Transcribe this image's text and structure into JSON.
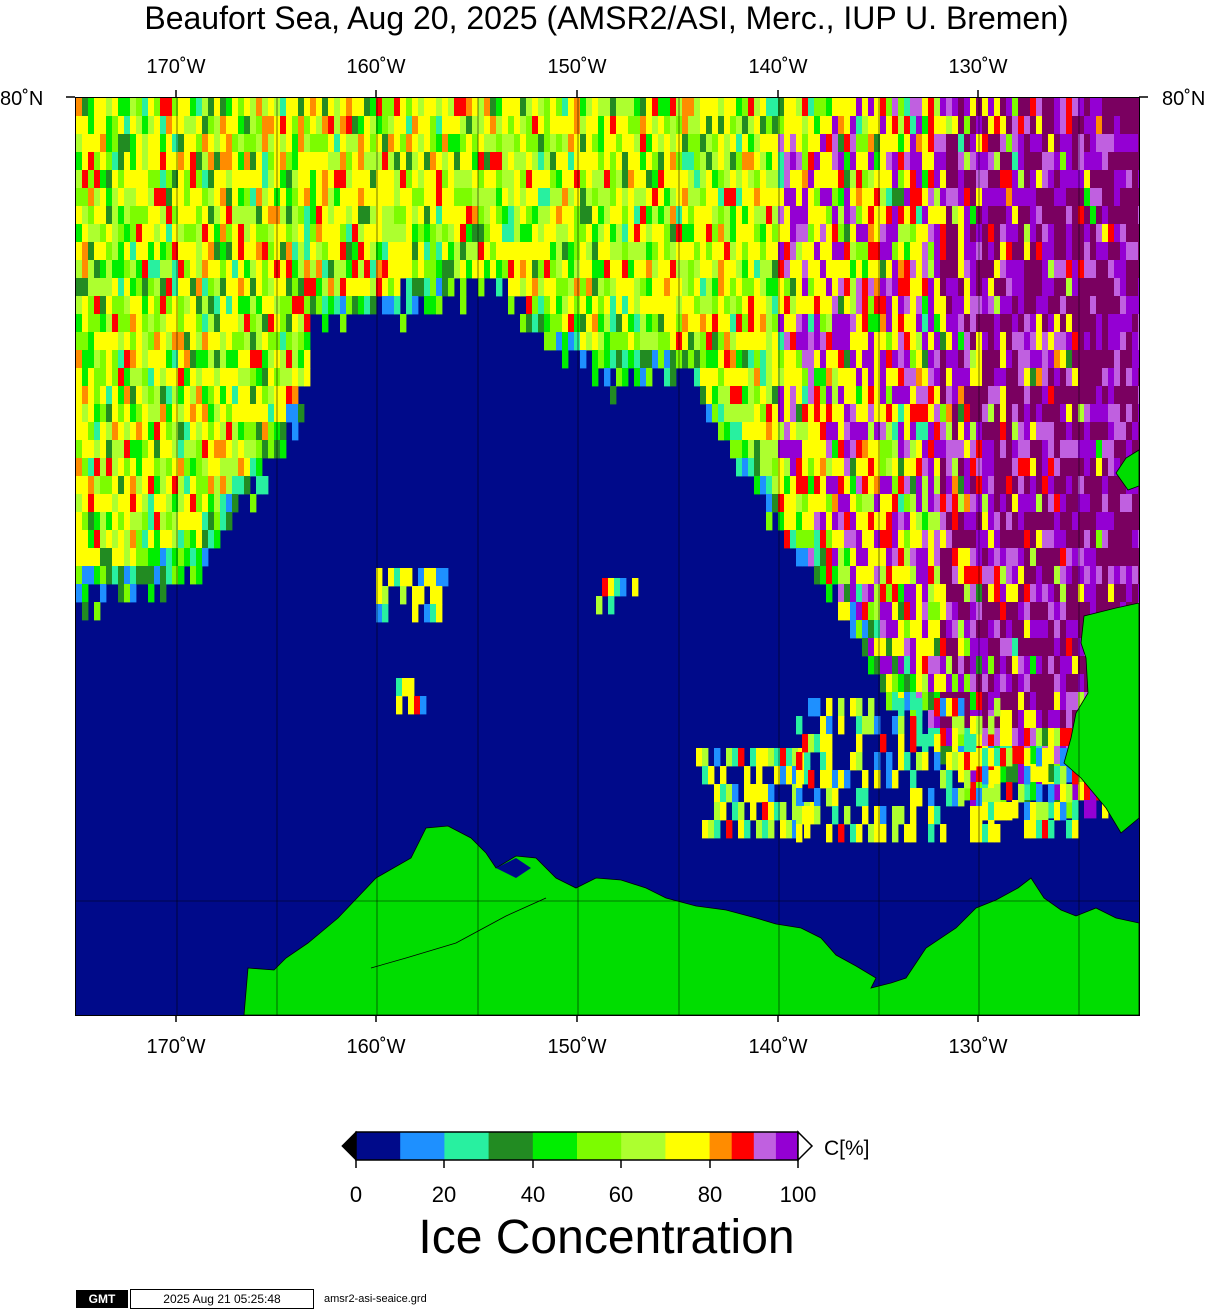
{
  "title": "Beaufort Sea, Aug 20, 2025 (AMSR2/ASI, Merc., IUP U. Bremen)",
  "map": {
    "lon_labels": [
      "170˚W",
      "160˚W",
      "150˚W",
      "140˚W",
      "130˚W"
    ],
    "lat_label": "80˚N",
    "lon_range_deg_west": [
      175,
      122
    ],
    "lat_top": "80N"
  },
  "colorbar": {
    "unit_label": "C[%]",
    "tick_labels": [
      "0",
      "20",
      "40",
      "60",
      "80",
      "100"
    ],
    "bins": [
      {
        "range": "0-10",
        "color": "#000a8a"
      },
      {
        "range": "10-20",
        "color": "#1e90ff"
      },
      {
        "range": "20-30",
        "color": "#28f0a0"
      },
      {
        "range": "30-40",
        "color": "#228b22"
      },
      {
        "range": "40-50",
        "color": "#00ee00"
      },
      {
        "range": "50-60",
        "color": "#7cfc00"
      },
      {
        "range": "60-70",
        "color": "#adff2f"
      },
      {
        "range": "70-80",
        "color": "#ffff00"
      },
      {
        "range": "80-85",
        "color": "#ff8c00"
      },
      {
        "range": "85-90",
        "color": "#ff0000"
      },
      {
        "range": "90-95",
        "color": "#c060e0"
      },
      {
        "range": "95-100",
        "color": "#9400d3"
      }
    ],
    "below_color": "#000000",
    "above_color": "#ffffff",
    "land_color": "#00dd00",
    "open_water_color": "#000a8a",
    "dense_ice_color": "#7a0060"
  },
  "caption": "Ice Concentration",
  "footer": {
    "logo": "GMT",
    "timestamp": "2025 Aug 21 05:25:48",
    "filename": "amsr2-asi-seaice.grd"
  }
}
